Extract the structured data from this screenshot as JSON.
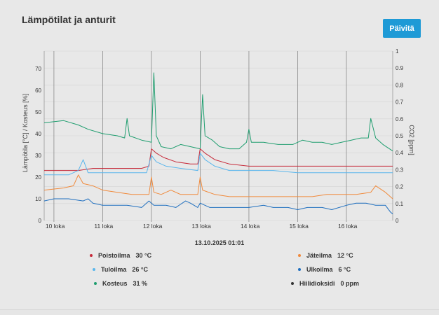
{
  "title": "Lämpötilat ja anturit",
  "refresh_label": "Päivitä",
  "timestamp": "13.10.2025 01:01",
  "legend": [
    {
      "label": "Poistoilma",
      "value": "30 °C",
      "color": "#c62a3a"
    },
    {
      "label": "Jäteilma",
      "value": "12 °C",
      "color": "#f08a3c"
    },
    {
      "label": "Tuloilma",
      "value": "26 °C",
      "color": "#5ab6ec"
    },
    {
      "label": "Ulkoilma",
      "value": "6 °C",
      "color": "#1f6fbf"
    },
    {
      "label": "Kosteus",
      "value": "31 %",
      "color": "#1e9d6e"
    },
    {
      "label": "Hiilidioksidi",
      "value": "0 ppm",
      "color": "#333333"
    }
  ],
  "chart_data": {
    "type": "line",
    "ylabel_left": "Lämpötila [°C] / Kosteus [%]",
    "ylabel_right": "CO2 [ppm]",
    "yticks_left": [
      "0",
      "10",
      "20",
      "30",
      "40",
      "50",
      "60",
      "70"
    ],
    "yticks_right": [
      "0",
      "0.1",
      "0.2",
      "0.3",
      "0.4",
      "0.5",
      "0.6",
      "0.7",
      "0.8",
      "0.9",
      "1"
    ],
    "ylim_left": [
      0,
      78
    ],
    "ylim_right": [
      0,
      1.0
    ],
    "xlim": [
      9.8,
      16.95
    ],
    "x_ticks": [
      {
        "x": 10,
        "label": "10 loka"
      },
      {
        "x": 11,
        "label": "11 loka"
      },
      {
        "x": 12,
        "label": "12 loka"
      },
      {
        "x": 13,
        "label": "13 loka"
      },
      {
        "x": 14,
        "label": "14 loka"
      },
      {
        "x": 15,
        "label": "15 loka"
      },
      {
        "x": 16,
        "label": "16 loka"
      }
    ],
    "series": [
      {
        "name": "Kosteus",
        "color": "#1e9d6e",
        "points": [
          [
            9.8,
            45
          ],
          [
            10.2,
            46
          ],
          [
            10.5,
            44
          ],
          [
            10.7,
            42
          ],
          [
            11.0,
            40
          ],
          [
            11.3,
            39
          ],
          [
            11.45,
            38
          ],
          [
            11.5,
            47
          ],
          [
            11.55,
            39
          ],
          [
            11.8,
            37
          ],
          [
            12.0,
            36
          ],
          [
            12.05,
            68
          ],
          [
            12.1,
            39
          ],
          [
            12.2,
            34
          ],
          [
            12.4,
            33
          ],
          [
            12.6,
            35
          ],
          [
            12.8,
            34
          ],
          [
            13.0,
            33
          ],
          [
            13.05,
            58
          ],
          [
            13.1,
            39
          ],
          [
            13.25,
            37
          ],
          [
            13.4,
            34
          ],
          [
            13.6,
            33
          ],
          [
            13.8,
            33
          ],
          [
            13.95,
            36
          ],
          [
            14.0,
            42
          ],
          [
            14.05,
            36
          ],
          [
            14.3,
            36
          ],
          [
            14.6,
            35
          ],
          [
            14.9,
            35
          ],
          [
            15.1,
            37
          ],
          [
            15.3,
            36
          ],
          [
            15.5,
            36
          ],
          [
            15.7,
            35
          ],
          [
            15.9,
            36
          ],
          [
            16.1,
            37
          ],
          [
            16.3,
            38
          ],
          [
            16.45,
            38
          ],
          [
            16.5,
            47
          ],
          [
            16.6,
            38
          ],
          [
            16.75,
            35
          ],
          [
            16.95,
            32
          ]
        ]
      },
      {
        "name": "Poistoilma",
        "color": "#c62a3a",
        "points": [
          [
            9.8,
            23
          ],
          [
            10.5,
            23
          ],
          [
            10.8,
            24
          ],
          [
            11.2,
            24
          ],
          [
            11.5,
            24
          ],
          [
            11.8,
            24
          ],
          [
            11.95,
            25
          ],
          [
            12.0,
            33
          ],
          [
            12.1,
            31
          ],
          [
            12.25,
            29
          ],
          [
            12.5,
            27
          ],
          [
            12.8,
            26
          ],
          [
            12.95,
            26
          ],
          [
            13.0,
            33
          ],
          [
            13.1,
            31
          ],
          [
            13.3,
            28
          ],
          [
            13.6,
            26
          ],
          [
            14.0,
            25
          ],
          [
            14.5,
            25
          ],
          [
            15.0,
            25
          ],
          [
            15.5,
            25
          ],
          [
            16.0,
            25
          ],
          [
            16.5,
            25
          ],
          [
            16.95,
            25
          ]
        ]
      },
      {
        "name": "Tuloilma",
        "color": "#5ab6ec",
        "points": [
          [
            9.8,
            21
          ],
          [
            10.3,
            21
          ],
          [
            10.5,
            23
          ],
          [
            10.6,
            28
          ],
          [
            10.7,
            22
          ],
          [
            11.0,
            22
          ],
          [
            11.5,
            22
          ],
          [
            11.9,
            22
          ],
          [
            12.0,
            30
          ],
          [
            12.1,
            27
          ],
          [
            12.3,
            25
          ],
          [
            12.6,
            24
          ],
          [
            12.95,
            23
          ],
          [
            13.0,
            31
          ],
          [
            13.1,
            28
          ],
          [
            13.3,
            25
          ],
          [
            13.6,
            23
          ],
          [
            14.0,
            23
          ],
          [
            14.5,
            23
          ],
          [
            15.0,
            22
          ],
          [
            15.5,
            22
          ],
          [
            16.0,
            22
          ],
          [
            16.5,
            22
          ],
          [
            16.95,
            22
          ]
        ]
      },
      {
        "name": "Jäteilma",
        "color": "#f08a3c",
        "points": [
          [
            9.8,
            14
          ],
          [
            10.2,
            15
          ],
          [
            10.4,
            16
          ],
          [
            10.5,
            21
          ],
          [
            10.6,
            17
          ],
          [
            10.8,
            16
          ],
          [
            11.0,
            14
          ],
          [
            11.3,
            13
          ],
          [
            11.6,
            12
          ],
          [
            11.95,
            12
          ],
          [
            12.0,
            20
          ],
          [
            12.05,
            13
          ],
          [
            12.2,
            12
          ],
          [
            12.4,
            14
          ],
          [
            12.6,
            12
          ],
          [
            12.95,
            12
          ],
          [
            13.0,
            20
          ],
          [
            13.05,
            14
          ],
          [
            13.3,
            12
          ],
          [
            13.6,
            11
          ],
          [
            14.0,
            11
          ],
          [
            14.4,
            11
          ],
          [
            14.7,
            11
          ],
          [
            15.0,
            11
          ],
          [
            15.3,
            11
          ],
          [
            15.6,
            12
          ],
          [
            15.9,
            12
          ],
          [
            16.2,
            12
          ],
          [
            16.5,
            13
          ],
          [
            16.6,
            16
          ],
          [
            16.8,
            13
          ],
          [
            16.95,
            10
          ]
        ]
      },
      {
        "name": "Ulkoilma",
        "color": "#1f6fbf",
        "points": [
          [
            9.8,
            9
          ],
          [
            10.0,
            10
          ],
          [
            10.3,
            10
          ],
          [
            10.6,
            9
          ],
          [
            10.7,
            10
          ],
          [
            10.8,
            8
          ],
          [
            11.0,
            7
          ],
          [
            11.3,
            7
          ],
          [
            11.5,
            7
          ],
          [
            11.8,
            6
          ],
          [
            11.95,
            9
          ],
          [
            12.05,
            7
          ],
          [
            12.3,
            7
          ],
          [
            12.5,
            6
          ],
          [
            12.7,
            9
          ],
          [
            12.8,
            8
          ],
          [
            12.95,
            6
          ],
          [
            13.0,
            8
          ],
          [
            13.2,
            6
          ],
          [
            13.5,
            6
          ],
          [
            13.8,
            6
          ],
          [
            14.0,
            6
          ],
          [
            14.3,
            7
          ],
          [
            14.5,
            6
          ],
          [
            14.8,
            6
          ],
          [
            15.0,
            5
          ],
          [
            15.2,
            6
          ],
          [
            15.5,
            6
          ],
          [
            15.7,
            5
          ],
          [
            16.0,
            7
          ],
          [
            16.2,
            8
          ],
          [
            16.4,
            8
          ],
          [
            16.6,
            7
          ],
          [
            16.8,
            7
          ],
          [
            16.9,
            4
          ],
          [
            16.95,
            3
          ]
        ]
      }
    ]
  }
}
